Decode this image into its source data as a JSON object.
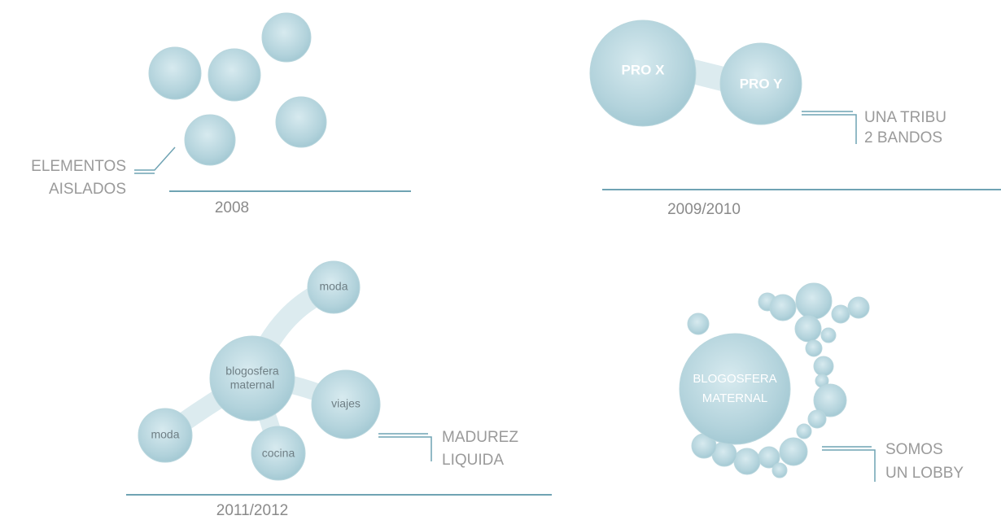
{
  "panels": [
    {
      "year": "2008",
      "caption": [
        "ELEMENTOS",
        "AISLADOS"
      ]
    },
    {
      "year": "2009/2010",
      "bubbles": [
        [
          "PRO X"
        ],
        [
          "PRO Y"
        ]
      ],
      "caption": [
        "UNA TRIBU",
        "2 BANDOS"
      ]
    },
    {
      "year": "2011/2012",
      "bubbles": [
        [
          "moda"
        ],
        [
          "blogosfera",
          "maternal"
        ],
        [
          "viajes"
        ],
        [
          "moda"
        ],
        [
          "cocina"
        ]
      ],
      "caption": [
        "MADUREZ",
        "LIQUIDA"
      ]
    },
    {
      "bubbles": [
        [
          "BLOGOSFERA",
          "MATERNAL"
        ]
      ],
      "caption": [
        "SOMOS",
        "UN LOBBY"
      ]
    }
  ]
}
